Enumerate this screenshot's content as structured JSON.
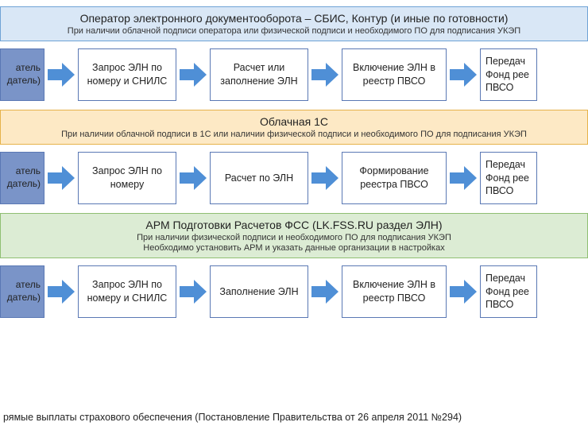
{
  "colors": {
    "header1_bg": "#d9e7f6",
    "header1_border": "#6fa3d6",
    "header2_bg": "#fde9c5",
    "header2_border": "#e6b24a",
    "header3_bg": "#dcecd4",
    "header3_border": "#8fbf72",
    "start_bg": "#7a94c8",
    "start_border": "#5a78b4",
    "box_border": "#5a78b4",
    "arrow_fill": "#4f8fd6"
  },
  "sections": [
    {
      "title": "Оператор электронного документооборота – СБИС, Контур (и иные по готовности)",
      "subtitle": "При наличии облачной подписи оператора или физической подписи и необходимого ПО для подписания УКЭП",
      "subtitle2": "",
      "start": "атель\nдатель)",
      "steps": [
        "Запрос ЭЛН по номеру и СНИЛС",
        "Расчет или заполнение ЭЛН",
        "Включение ЭЛН в реестр ПВСО",
        "Передач\nФонд рее\nПВСО"
      ]
    },
    {
      "title": "Облачная 1С",
      "subtitle": "При наличии облачной подписи в 1С или наличии физической подписи и необходимого ПО для подписания УКЭП",
      "subtitle2": "",
      "start": "атель\nдатель)",
      "steps": [
        "Запрос ЭЛН по номеру",
        "Расчет по ЭЛН",
        "Формирование реестра ПВСО",
        "Передач\nФонд рее\nПВСО"
      ]
    },
    {
      "title": "АРМ Подготовки Расчетов ФСС (LK.FSS.RU раздел ЭЛН)",
      "subtitle": "При наличии физической подписи и необходимого ПО для подписания УКЭП",
      "subtitle2": "Необходимо установить АРМ и указать данные организации в настройках",
      "start": "атель\nдатель)",
      "steps": [
        "Запрос ЭЛН по номеру и СНИЛС",
        "Заполнение ЭЛН",
        "Включение ЭЛН в реестр ПВСО",
        "Передач\nФонд рее\nПВСО"
      ]
    }
  ],
  "footer": "рямые выплаты страхового обеспечения  (Постановление Правительства от 26 апреля 2011 №294)"
}
